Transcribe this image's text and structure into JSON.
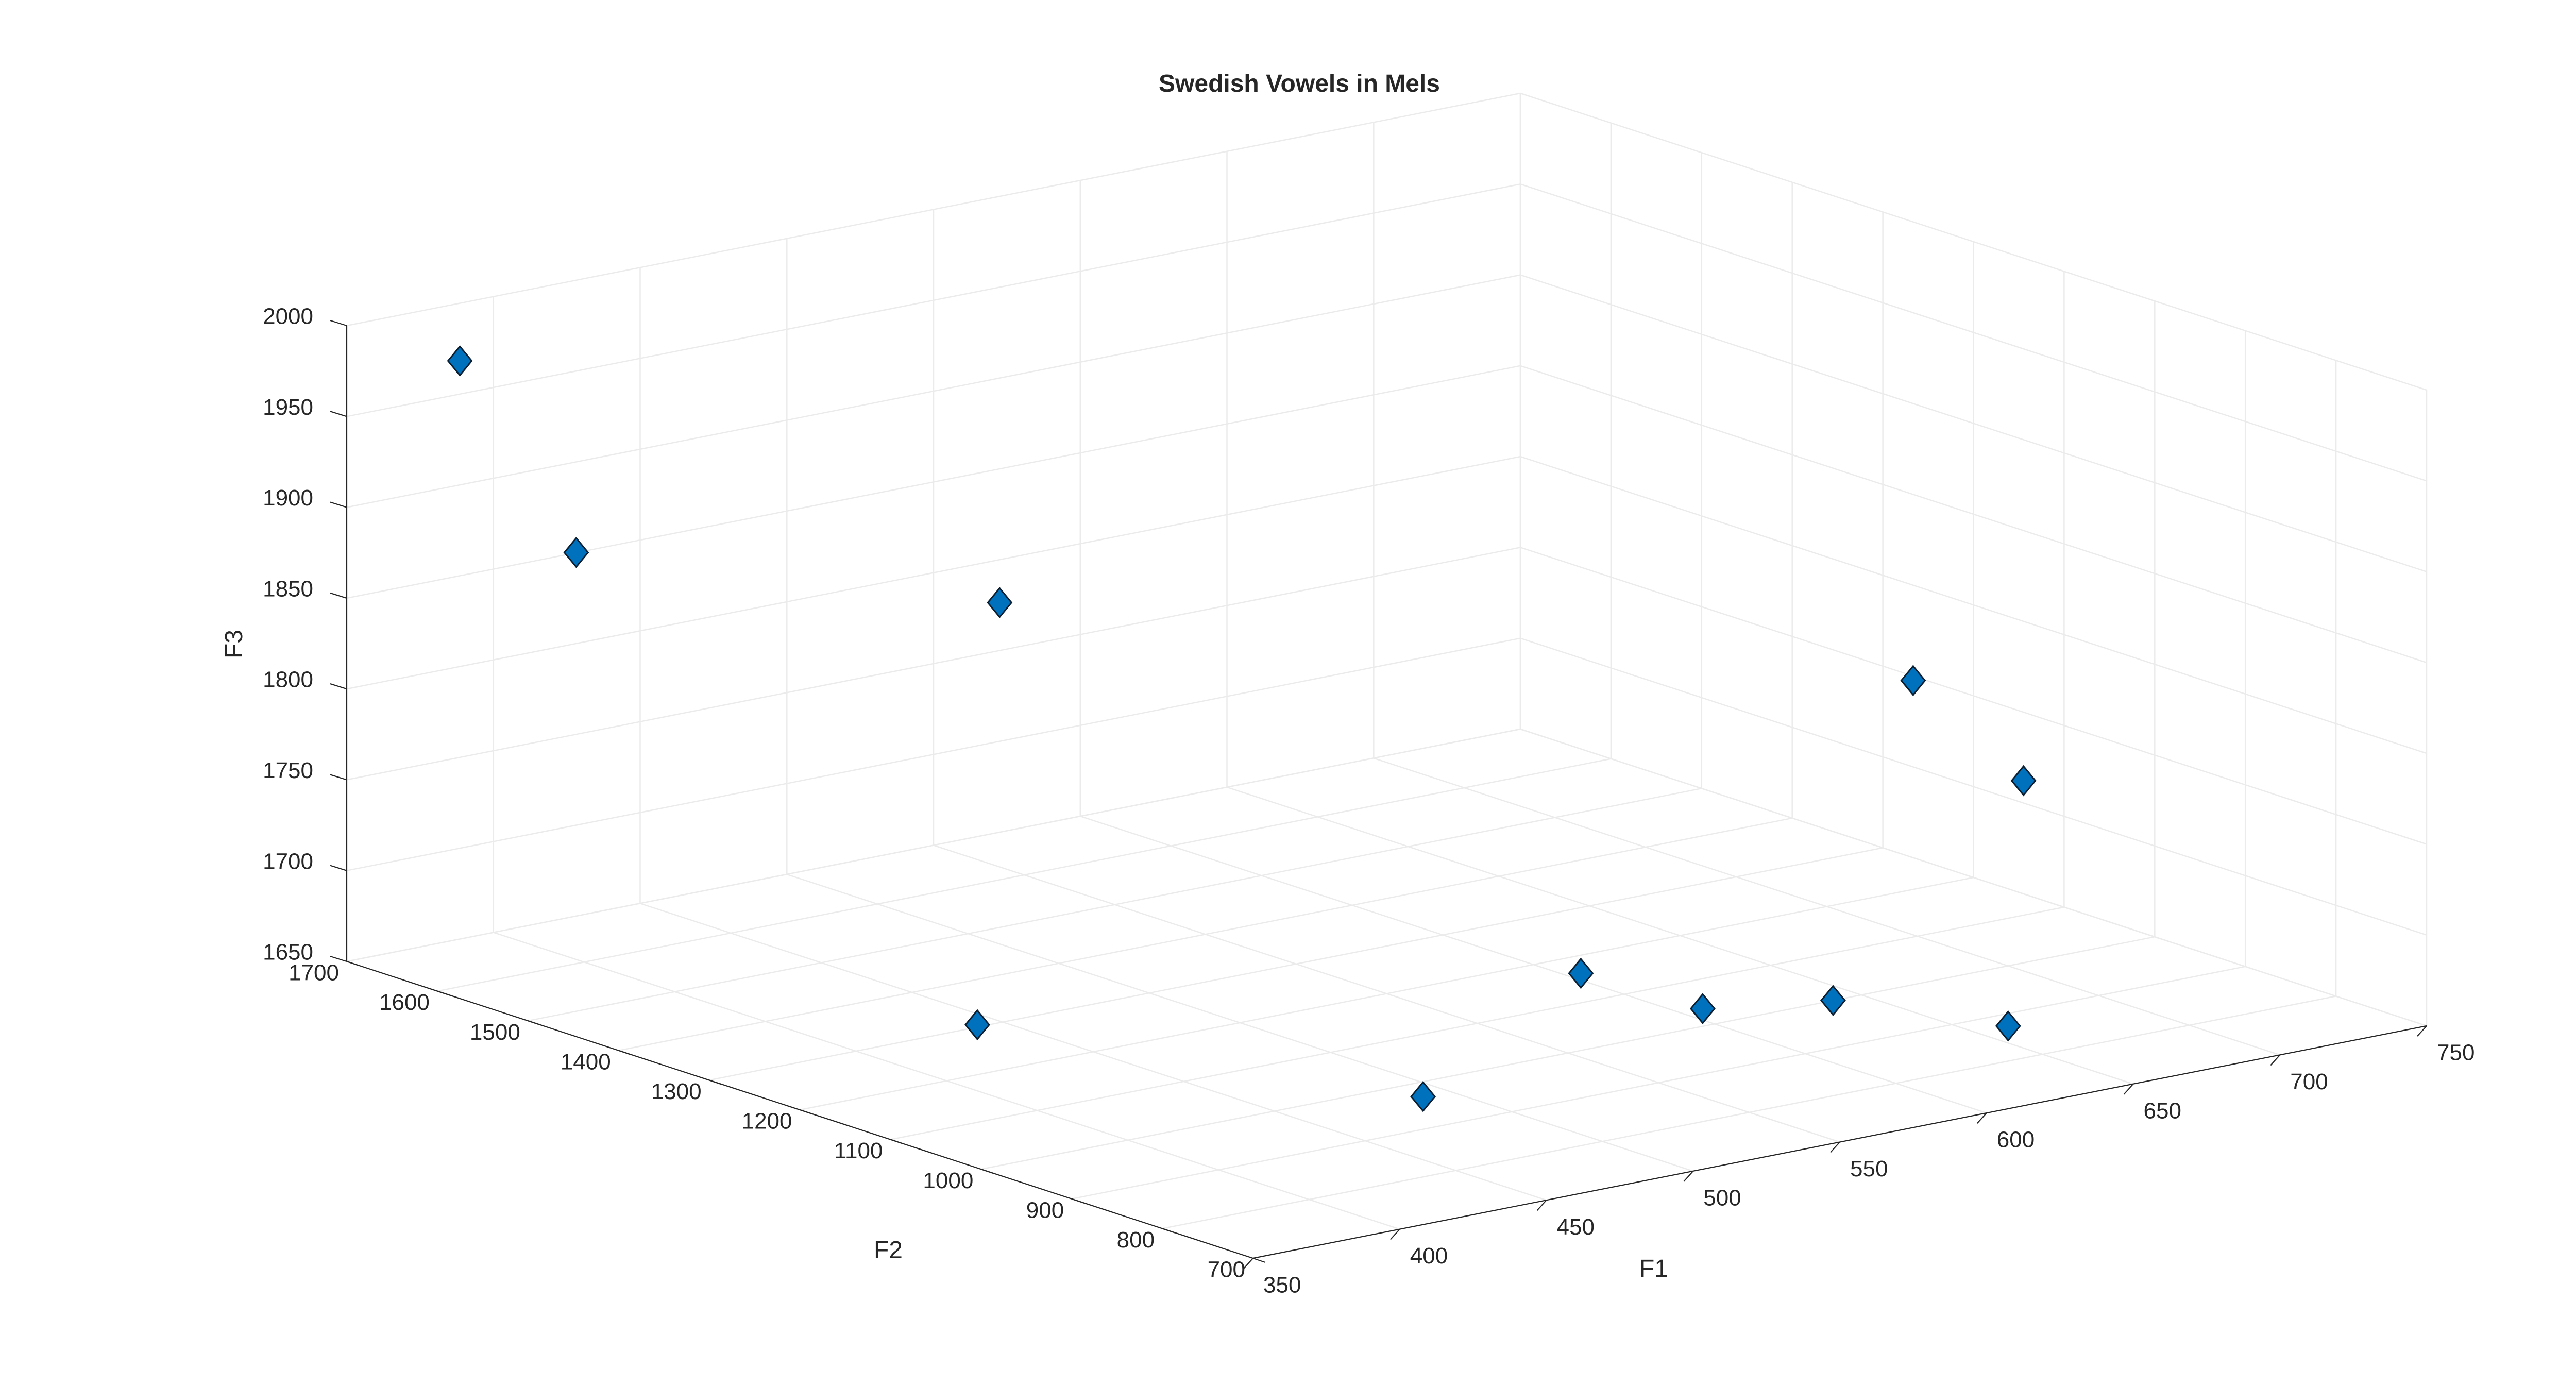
{
  "chart_data": {
    "type": "scatter",
    "title": "Swedish Vowels in Mels",
    "xlabel": "F1",
    "ylabel": "F2",
    "zlabel": "F3",
    "xlim": [
      350,
      750
    ],
    "ylim": [
      700,
      1700
    ],
    "zlim": [
      1650,
      2000
    ],
    "xticks": [
      "350",
      "400",
      "450",
      "500",
      "550",
      "600",
      "650",
      "700",
      "750"
    ],
    "yticks": [
      "700",
      "800",
      "900",
      "1000",
      "1100",
      "1200",
      "1300",
      "1400",
      "1500",
      "1600",
      "1700"
    ],
    "zticks": [
      "1650",
      "1700",
      "1750",
      "1800",
      "1850",
      "1900",
      "1950",
      "2000"
    ],
    "grid": true,
    "marker": "diamond",
    "marker_color": "#0072BD",
    "points": [
      {
        "x": 383,
        "y": 1682,
        "z": 1973
      },
      {
        "x": 393,
        "y": 1586,
        "z": 1880
      },
      {
        "x": 474,
        "y": 1381,
        "z": 1860
      },
      {
        "x": 404,
        "y": 1179,
        "z": 1683
      },
      {
        "x": 458,
        "y": 862,
        "z": 1678
      },
      {
        "x": 509,
        "y": 853,
        "z": 1731
      },
      {
        "x": 634,
        "y": 891,
        "z": 1846
      },
      {
        "x": 532,
        "y": 793,
        "z": 1714
      },
      {
        "x": 565,
        "y": 756,
        "z": 1714
      },
      {
        "x": 629,
        "y": 753,
        "z": 1815
      },
      {
        "x": 608,
        "y": 702,
        "z": 1695
      }
    ]
  }
}
